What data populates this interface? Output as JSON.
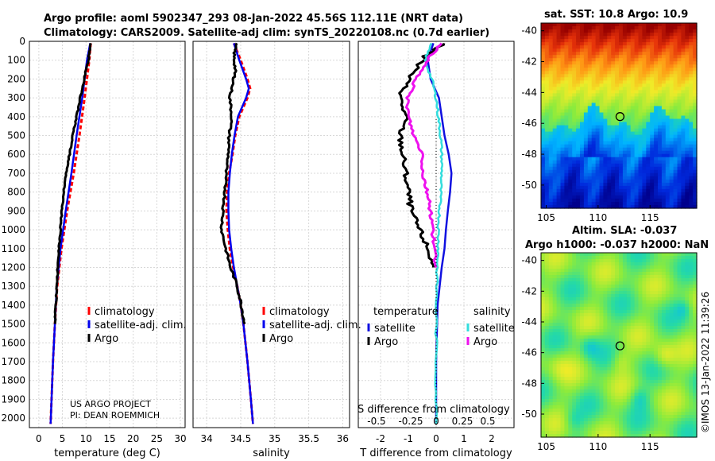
{
  "header": {
    "line1": "Argo profile: aoml 5902347_293 08-Jan-2022 45.56S 112.11E (NRT data)",
    "line2": "Climatology: CARS2009. Satellite-adj clim: synTS_20220108.nc (0.7d earlier)"
  },
  "colors": {
    "climatology": "#ff0000",
    "satellite_adj": "#0000ee",
    "argo": "#000000",
    "t_satellite": "#1010e0",
    "s_satellite": "#33dddd",
    "s_argo": "#ee11ee"
  },
  "chart_data": [
    {
      "type": "line",
      "name": "temperature",
      "xlabel": "temperature (deg C)",
      "ylabel": "",
      "xlim": [
        -2,
        31
      ],
      "ylim": [
        2050,
        0
      ],
      "xticks": [
        "0",
        "5",
        "10",
        "15",
        "20",
        "25",
        "30"
      ],
      "yticks": [
        "0",
        "100",
        "200",
        "300",
        "400",
        "500",
        "600",
        "700",
        "800",
        "900",
        "1000",
        "1100",
        "1200",
        "1300",
        "1400",
        "1500",
        "1600",
        "1700",
        "1800",
        "1900",
        "2000"
      ],
      "legend": [
        "climatology",
        "satellite-adj. clim.",
        "Argo"
      ],
      "annotation": [
        "US ARGO PROJECT",
        "PI: DEAN ROEMMICH"
      ],
      "series": [
        {
          "name": "climatology",
          "depth": [
            10,
            100,
            300,
            500,
            700,
            900,
            1100,
            1300,
            1500,
            1700,
            1900,
            2030
          ],
          "values": [
            11.0,
            10.7,
            9.7,
            8.6,
            7.4,
            6.0,
            4.8,
            3.9,
            3.4,
            3.0,
            2.7,
            2.5
          ]
        },
        {
          "name": "satellite-adj. clim.",
          "depth": [
            10,
            100,
            300,
            500,
            700,
            900,
            1100,
            1300,
            1500,
            1700,
            1900,
            2030
          ],
          "values": [
            10.9,
            10.2,
            9.2,
            8.0,
            6.9,
            5.7,
            4.6,
            3.8,
            3.4,
            3.0,
            2.7,
            2.5
          ]
        },
        {
          "name": "Argo",
          "depth": [
            10,
            100,
            200,
            300,
            400,
            500,
            600,
            700,
            800,
            900,
            1000,
            1100,
            1200,
            1300,
            1400,
            1500
          ],
          "values": [
            10.9,
            10.5,
            9.6,
            8.8,
            8.0,
            7.2,
            6.5,
            5.8,
            5.2,
            4.9,
            4.6,
            4.3,
            4.0,
            3.8,
            3.6,
            3.4
          ]
        }
      ]
    },
    {
      "type": "line",
      "name": "salinity",
      "xlabel": "salinity",
      "xlim": [
        33.8,
        36.1
      ],
      "ylim": [
        2050,
        0
      ],
      "xticks": [
        "34",
        "34.5",
        "35",
        "35.5",
        "36"
      ],
      "legend": [
        "climatology",
        "satellite-adj. clim.",
        "Argo"
      ],
      "series": [
        {
          "name": "climatology",
          "depth": [
            10,
            100,
            200,
            250,
            300,
            400,
            500,
            600,
            700,
            800,
            900,
            1000,
            1100,
            1200,
            1300,
            1400,
            1500,
            1700,
            1900,
            2030
          ],
          "values": [
            34.4,
            34.5,
            34.6,
            34.64,
            34.6,
            34.48,
            34.42,
            34.38,
            34.33,
            34.3,
            34.29,
            34.31,
            34.34,
            34.39,
            34.45,
            34.5,
            34.54,
            34.6,
            34.65,
            34.68
          ]
        },
        {
          "name": "satellite-adj. clim.",
          "depth": [
            10,
            100,
            200,
            250,
            300,
            400,
            500,
            600,
            700,
            800,
            900,
            1000,
            1100,
            1200,
            1300,
            1400,
            1500,
            1700,
            1900,
            2030
          ],
          "values": [
            34.4,
            34.48,
            34.58,
            34.62,
            34.58,
            34.46,
            34.41,
            34.37,
            34.34,
            34.32,
            34.32,
            34.33,
            34.36,
            34.4,
            34.45,
            34.5,
            34.54,
            34.6,
            34.65,
            34.68
          ]
        },
        {
          "name": "Argo",
          "depth": [
            10,
            80,
            150,
            200,
            300,
            400,
            500,
            600,
            700,
            800,
            900,
            1000,
            1100,
            1200,
            1300,
            1400,
            1500
          ],
          "values": [
            34.43,
            34.4,
            34.42,
            34.4,
            34.34,
            34.37,
            34.33,
            34.32,
            34.28,
            34.27,
            34.24,
            34.22,
            34.28,
            34.35,
            34.45,
            34.51,
            34.56
          ]
        }
      ]
    },
    {
      "type": "line",
      "name": "difference",
      "xlabel": "T difference from climatology",
      "top_label": "S difference from climatology",
      "xlim": [
        -2.8,
        2.8
      ],
      "ylim": [
        2050,
        0
      ],
      "xticks": [
        "-2",
        "-1",
        "0",
        "1",
        "2"
      ],
      "s_xticks": [
        "-0.5",
        "-0.25",
        "0",
        "0.25",
        "0.5"
      ],
      "legend_titles": [
        "temperature",
        "salinity"
      ],
      "legend_temperature": [
        "satellite",
        "Argo"
      ],
      "legend_salinity": [
        "satellite",
        "Argo"
      ],
      "series": [
        {
          "name": "temperature satellite",
          "depth": [
            10,
            100,
            200,
            300,
            400,
            500,
            600,
            700,
            800,
            900,
            1000,
            1100,
            1200,
            1400,
            1700,
            2030
          ],
          "values": [
            -0.1,
            -0.3,
            -0.2,
            0.1,
            0.2,
            0.3,
            0.45,
            0.55,
            0.5,
            0.42,
            0.35,
            0.3,
            0.2,
            0.05,
            0.0,
            0.0
          ]
        },
        {
          "name": "temperature Argo",
          "depth": [
            10,
            80,
            200,
            300,
            400,
            500,
            600,
            700,
            800,
            900,
            1000,
            1100,
            1200
          ],
          "values": [
            0.3,
            -0.4,
            -1.0,
            -1.3,
            -1.1,
            -1.3,
            -1.2,
            -1.1,
            -1.0,
            -0.9,
            -0.6,
            -0.3,
            -0.1
          ]
        },
        {
          "name": "salinity satellite",
          "depth": [
            10,
            100,
            200,
            300,
            400,
            500,
            600,
            700,
            800,
            900,
            1000,
            1100,
            1200,
            1400,
            1700,
            2030
          ],
          "values": [
            -0.05,
            -0.1,
            -0.04,
            0.0,
            0.02,
            0.04,
            0.05,
            0.05,
            0.04,
            0.03,
            0.02,
            0.02,
            0.01,
            0.0,
            0.0,
            0.0
          ]
        },
        {
          "name": "salinity Argo",
          "depth": [
            10,
            100,
            200,
            300,
            400,
            500,
            600,
            700,
            800,
            900,
            1000,
            1100,
            1200
          ],
          "values": [
            0.05,
            -0.08,
            -0.18,
            -0.26,
            -0.25,
            -0.2,
            -0.12,
            -0.12,
            -0.08,
            -0.05,
            -0.03,
            -0.02,
            0.0
          ]
        }
      ]
    },
    {
      "type": "heatmap",
      "name": "sst_map",
      "title": "sat. SST: 10.8 Argo: 10.9",
      "xticks": [
        "105",
        "110",
        "115"
      ],
      "yticks": [
        "-40",
        "-42",
        "-44",
        "-46",
        "-48",
        "-50"
      ],
      "xlim": [
        104.5,
        119.5
      ],
      "ylim": [
        -51.5,
        -39.5
      ],
      "argo_position": {
        "lon": 112.11,
        "lat": -45.56
      }
    },
    {
      "type": "heatmap",
      "name": "sla_map",
      "title": "Altim. SLA: -0.037",
      "subtitle": "Argo h1000: -0.037 h2000: NaN",
      "xticks": [
        "105",
        "110",
        "115"
      ],
      "yticks": [
        "-40",
        "-42",
        "-44",
        "-46",
        "-48",
        "-50"
      ],
      "xlim": [
        104.5,
        119.5
      ],
      "ylim": [
        -51.5,
        -39.5
      ],
      "argo_position": {
        "lon": 112.11,
        "lat": -45.56
      }
    }
  ],
  "side_stamp": "©IMOS 13-Jan-2022 11:39:26"
}
